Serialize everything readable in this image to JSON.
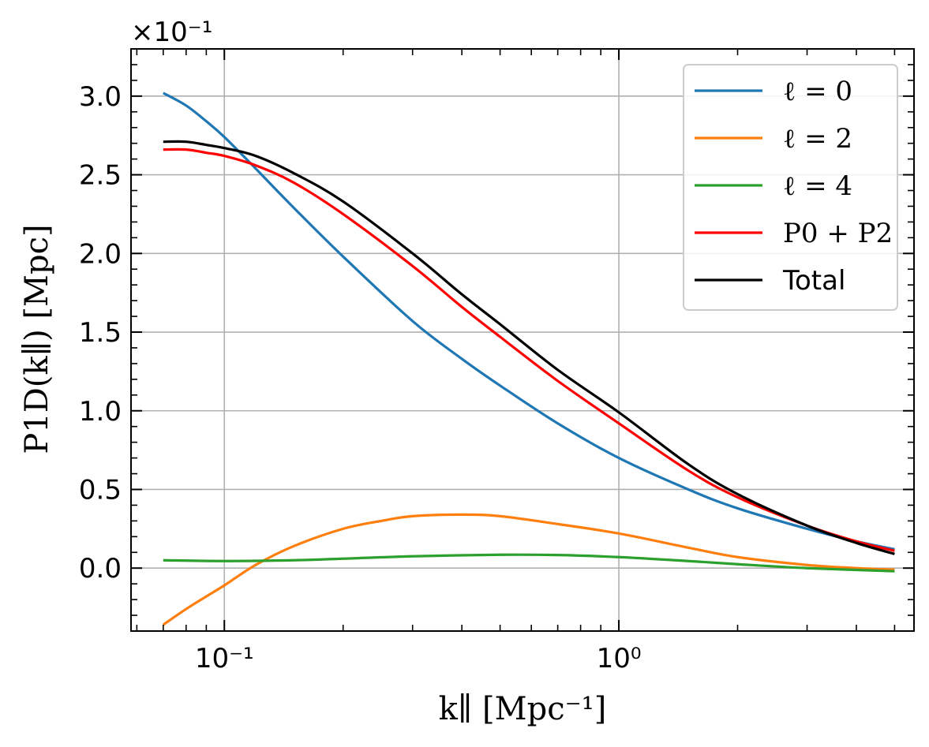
{
  "chart_data": {
    "type": "line",
    "xscale": "log",
    "xlim": [
      0.058,
      5.6
    ],
    "ylim": [
      -0.4,
      3.3
    ],
    "y_multiplier_label": "×10⁻¹",
    "xlabel": "k∥ [Mpc⁻¹]",
    "ylabel": "P1D(k∥) [Mpc]",
    "xticks": [
      0.1,
      1
    ],
    "xtick_labels": [
      "10⁻¹",
      "10⁰"
    ],
    "yticks": [
      0.0,
      0.5,
      1.0,
      1.5,
      2.0,
      2.5,
      3.0
    ],
    "ytick_labels": [
      "0.0",
      "0.5",
      "1.0",
      "1.5",
      "2.0",
      "2.5",
      "3.0"
    ],
    "grid": true,
    "legend_position": "top-right",
    "series": [
      {
        "name": "ℓ = 0",
        "color": "#1f77b4",
        "x": [
          0.07,
          0.08,
          0.09,
          0.1,
          0.12,
          0.15,
          0.2,
          0.3,
          0.4,
          0.5,
          0.7,
          1.0,
          1.5,
          2.0,
          3.0,
          4.0,
          5.0
        ],
        "y": [
          3.02,
          2.94,
          2.84,
          2.74,
          2.54,
          2.29,
          1.98,
          1.57,
          1.33,
          1.16,
          0.92,
          0.7,
          0.5,
          0.38,
          0.25,
          0.17,
          0.12
        ]
      },
      {
        "name": "ℓ = 2",
        "color": "#ff7f0e",
        "x": [
          0.07,
          0.08,
          0.09,
          0.1,
          0.12,
          0.15,
          0.2,
          0.25,
          0.3,
          0.4,
          0.5,
          0.7,
          1.0,
          1.5,
          2.0,
          3.0,
          4.0,
          5.0
        ],
        "y": [
          -0.36,
          -0.26,
          -0.18,
          -0.11,
          0.02,
          0.14,
          0.25,
          0.3,
          0.33,
          0.34,
          0.33,
          0.28,
          0.22,
          0.13,
          0.07,
          0.02,
          0.0,
          -0.01
        ]
      },
      {
        "name": "ℓ = 4",
        "color": "#2ca02c",
        "x": [
          0.07,
          0.1,
          0.15,
          0.2,
          0.3,
          0.5,
          0.7,
          1.0,
          1.5,
          2.0,
          3.0,
          5.0
        ],
        "y": [
          0.05,
          0.045,
          0.05,
          0.06,
          0.075,
          0.085,
          0.083,
          0.07,
          0.045,
          0.025,
          0.0,
          -0.02
        ]
      },
      {
        "name": "P0 + P2",
        "color": "#ff0000",
        "x": [
          0.07,
          0.08,
          0.09,
          0.1,
          0.12,
          0.15,
          0.2,
          0.3,
          0.4,
          0.5,
          0.7,
          1.0,
          1.5,
          2.0,
          3.0,
          4.0,
          5.0
        ],
        "y": [
          2.66,
          2.66,
          2.64,
          2.62,
          2.56,
          2.45,
          2.25,
          1.92,
          1.66,
          1.47,
          1.19,
          0.92,
          0.62,
          0.45,
          0.27,
          0.17,
          0.11
        ]
      },
      {
        "name": "Total",
        "color": "#000000",
        "x": [
          0.07,
          0.08,
          0.09,
          0.1,
          0.12,
          0.15,
          0.2,
          0.3,
          0.4,
          0.5,
          0.7,
          1.0,
          1.5,
          2.0,
          3.0,
          4.0,
          5.0
        ],
        "y": [
          2.71,
          2.71,
          2.69,
          2.67,
          2.62,
          2.51,
          2.33,
          2.0,
          1.74,
          1.55,
          1.26,
          0.99,
          0.66,
          0.47,
          0.27,
          0.16,
          0.09
        ]
      }
    ]
  }
}
